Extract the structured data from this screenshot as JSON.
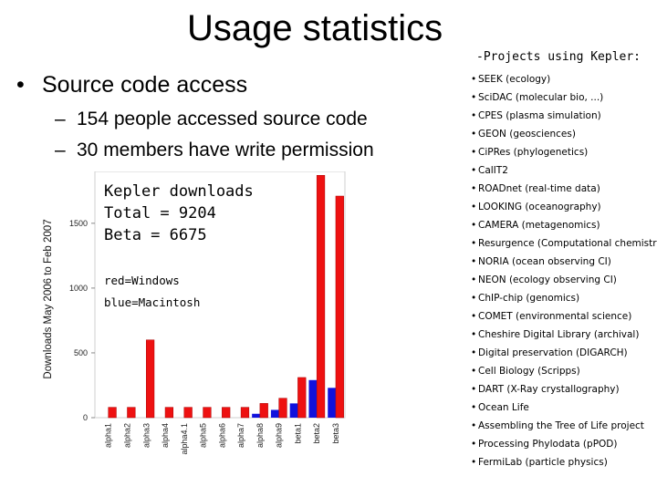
{
  "slide": {
    "title": "Usage statistics",
    "bullet": "Source code access",
    "subbullets": [
      "154 people accessed source code",
      "30 members have write permission"
    ]
  },
  "projects": {
    "heading": "-Projects using Kepler:",
    "items": [
      "SEEK (ecology)",
      "SciDAC (molecular bio, ...)",
      "CPES (plasma simulation)",
      "GEON (geosciences)",
      "CiPRes (phylogenetics)",
      "CalIT2",
      "ROADnet (real-time data)",
      "LOOKING (oceanography)",
      "CAMERA (metagenomics)",
      "Resurgence (Computational chemistry)",
      "NORIA (ocean observing CI)",
      "NEON (ecology observing CI)",
      "ChIP-chip (genomics)",
      "COMET (environmental science)",
      "Cheshire Digital Library (archival)",
      "Digital preservation (DIGARCH)",
      "Cell Biology (Scripps)",
      "DART (X-Ray crystallography)",
      "Ocean Life",
      "Assembling the Tree of Life project",
      "Processing Phylodata (pPOD)",
      "FermiLab (particle physics)"
    ]
  },
  "chart_data": {
    "type": "bar",
    "ylabel": "Downloads May 2006 to Feb 2007",
    "xlabel": "",
    "ylim": [
      0,
      1900
    ],
    "yticks": [
      0,
      500,
      1000,
      1500
    ],
    "categories": [
      "alpha1",
      "alpha2",
      "alpha3",
      "alpha4",
      "alpha4.1",
      "alpha5",
      "alpha6",
      "alpha7",
      "alpha8",
      "alpha9",
      "beta1",
      "beta2",
      "beta3"
    ],
    "series": [
      {
        "name": "red=Windows",
        "color": "#ee1111",
        "values": [
          80,
          80,
          600,
          80,
          80,
          80,
          80,
          80,
          110,
          150,
          310,
          1870,
          1710
        ]
      },
      {
        "name": "blue=Macintosh",
        "color": "#1111dd",
        "values": [
          0,
          0,
          0,
          0,
          0,
          0,
          0,
          0,
          30,
          60,
          110,
          290,
          230
        ]
      }
    ],
    "annotations": {
      "heading": "Kepler downloads",
      "total": "Total = 9204",
      "beta": "Beta = 6675",
      "legend_red": "red=Windows",
      "legend_blue": "blue=Macintosh"
    },
    "grid": false
  }
}
